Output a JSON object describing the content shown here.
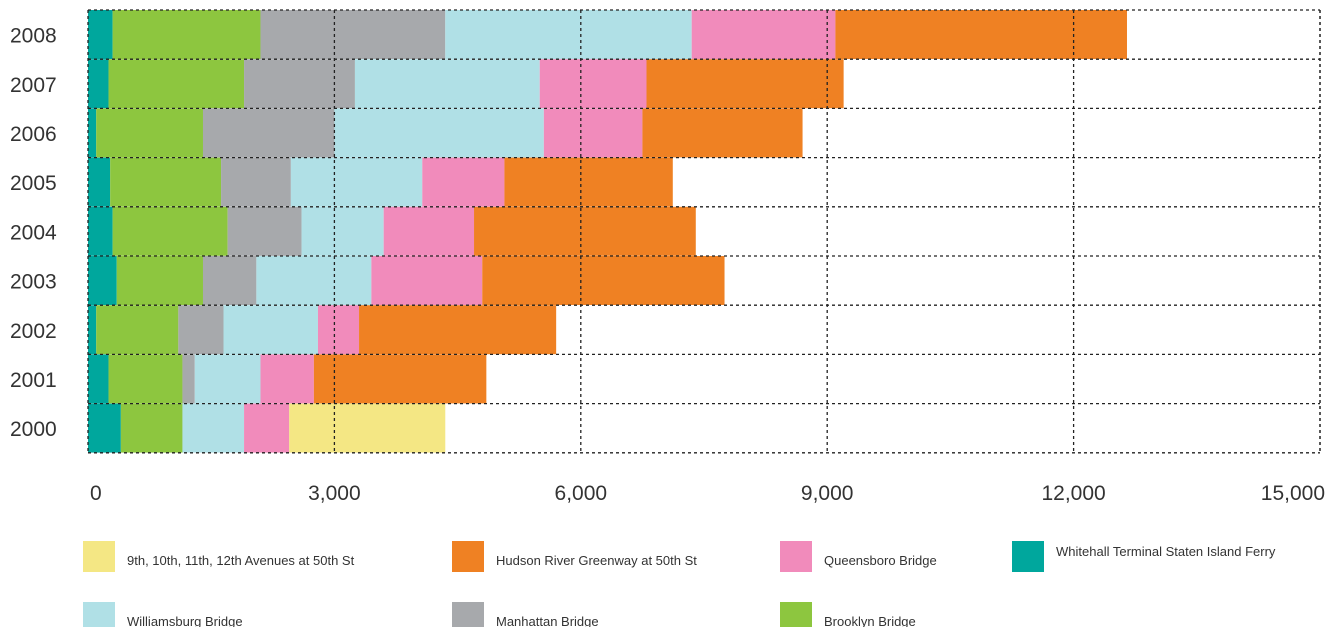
{
  "chart_data": {
    "type": "bar",
    "orientation": "horizontal",
    "stacked": true,
    "title": "",
    "xlabel": "",
    "ylabel": "",
    "xlim": [
      0,
      15000
    ],
    "x_ticks": [
      "0",
      "3,000",
      "6,000",
      "9,000",
      "12,000",
      "15,000"
    ],
    "x_tick_values": [
      0,
      3000,
      6000,
      9000,
      12000,
      15000
    ],
    "categories": [
      "2008",
      "2007",
      "2006",
      "2005",
      "2004",
      "2003",
      "2002",
      "2001",
      "2000"
    ],
    "grid": true,
    "legend_position": "bottom",
    "series": [
      {
        "name": "Whitehall Terminal Staten Island Ferry",
        "color": "#00a79d",
        "values": [
          300,
          250,
          100,
          270,
          300,
          350,
          100,
          250,
          400
        ]
      },
      {
        "name": "Brooklyn Bridge",
        "color": "#8dc63f",
        "values": [
          1800,
          1650,
          1300,
          1350,
          1400,
          1050,
          1000,
          900,
          750
        ]
      },
      {
        "name": "Manhattan Bridge",
        "color": "#a7a9ac",
        "values": [
          2250,
          1350,
          1600,
          850,
          900,
          650,
          550,
          150,
          0
        ]
      },
      {
        "name": "Williamsburg Bridge",
        "color": "#b0e0e6",
        "values": [
          3000,
          2250,
          2550,
          1600,
          1000,
          1400,
          1150,
          800,
          750
        ]
      },
      {
        "name": "Queensboro Bridge",
        "color": "#f18bbb",
        "values": [
          1750,
          1300,
          1200,
          1000,
          1100,
          1350,
          500,
          650,
          550
        ]
      },
      {
        "name": "Hudson River Greenway at 50th St",
        "color": "#ef8123",
        "values": [
          3550,
          2400,
          1950,
          2050,
          2700,
          2950,
          2400,
          2100,
          0
        ]
      },
      {
        "name": "9th, 10th, 11th, 12th Avenues at 50th St",
        "color": "#f4e784",
        "values": [
          0,
          0,
          0,
          0,
          0,
          0,
          0,
          0,
          1900
        ]
      }
    ]
  },
  "legend": [
    {
      "label": "9th, 10th, 11th, 12th Avenues at 50th St",
      "color": "#f4e784"
    },
    {
      "label": "Hudson River Greenway at 50th St",
      "color": "#ef8123"
    },
    {
      "label": "Queensboro Bridge",
      "color": "#f18bbb"
    },
    {
      "label": "Whitehall Terminal Staten Island Ferry",
      "color": "#00a79d"
    },
    {
      "label": "Williamsburg Bridge",
      "color": "#b0e0e6"
    },
    {
      "label": "Manhattan Bridge",
      "color": "#a7a9ac"
    },
    {
      "label": "Brooklyn Bridge",
      "color": "#8dc63f"
    }
  ]
}
